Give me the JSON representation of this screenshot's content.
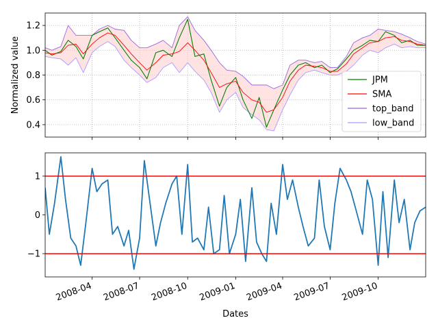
{
  "chart_data": [
    {
      "type": "line",
      "panel": "top",
      "xlabel": "",
      "ylabel": "Normalized value",
      "xlim": [
        "2008-01-02",
        "2009-12-31"
      ],
      "ylim": [
        0.3,
        1.3
      ],
      "yticks": [
        0.4,
        0.6,
        0.8,
        1.0,
        1.2
      ],
      "ytick_labels": [
        "0.4",
        "0.6",
        "0.8",
        "1.0",
        "1.2"
      ],
      "grid": true,
      "grid_style": "dotted",
      "legend_position": "lower-right",
      "band_fill_color": "#ffcccc",
      "series": [
        {
          "name": "JPM",
          "color": "#008000",
          "role": "price",
          "x": [
            "2008-01-02",
            "2008-01-15",
            "2008-02-01",
            "2008-02-15",
            "2008-03-01",
            "2008-03-15",
            "2008-04-01",
            "2008-04-15",
            "2008-05-01",
            "2008-05-15",
            "2008-06-01",
            "2008-06-15",
            "2008-07-01",
            "2008-07-15",
            "2008-08-01",
            "2008-08-15",
            "2008-09-01",
            "2008-09-15",
            "2008-10-01",
            "2008-10-15",
            "2008-11-01",
            "2008-11-15",
            "2008-12-01",
            "2008-12-15",
            "2009-01-01",
            "2009-01-15",
            "2009-02-01",
            "2009-02-15",
            "2009-03-01",
            "2009-03-15",
            "2009-04-01",
            "2009-04-15",
            "2009-05-01",
            "2009-05-15",
            "2009-06-01",
            "2009-06-15",
            "2009-07-01",
            "2009-07-15",
            "2009-08-01",
            "2009-08-15",
            "2009-09-01",
            "2009-09-15",
            "2009-10-01",
            "2009-10-15",
            "2009-11-01",
            "2009-11-15",
            "2009-12-01",
            "2009-12-15",
            "2009-12-31"
          ],
          "values": [
            1.0,
            0.96,
            0.99,
            1.08,
            1.03,
            0.93,
            1.12,
            1.15,
            1.18,
            1.1,
            1.0,
            0.92,
            0.86,
            0.77,
            0.98,
            1.0,
            0.95,
            1.1,
            1.25,
            0.95,
            0.97,
            0.76,
            0.55,
            0.7,
            0.78,
            0.6,
            0.45,
            0.62,
            0.38,
            0.52,
            0.68,
            0.8,
            0.88,
            0.9,
            0.86,
            0.88,
            0.82,
            0.85,
            0.93,
            1.0,
            1.04,
            1.08,
            1.07,
            1.15,
            1.12,
            1.06,
            1.08,
            1.04,
            1.04
          ]
        },
        {
          "name": "SMA",
          "color": "#ff0000",
          "role": "moving-average",
          "x": [
            "2008-01-02",
            "2008-01-15",
            "2008-02-01",
            "2008-02-15",
            "2008-03-01",
            "2008-03-15",
            "2008-04-01",
            "2008-04-15",
            "2008-05-01",
            "2008-05-15",
            "2008-06-01",
            "2008-06-15",
            "2008-07-01",
            "2008-07-15",
            "2008-08-01",
            "2008-08-15",
            "2008-09-01",
            "2008-09-15",
            "2008-10-01",
            "2008-10-15",
            "2008-11-01",
            "2008-11-15",
            "2008-12-01",
            "2008-12-15",
            "2009-01-01",
            "2009-01-15",
            "2009-02-01",
            "2009-02-15",
            "2009-03-01",
            "2009-03-15",
            "2009-04-01",
            "2009-04-15",
            "2009-05-01",
            "2009-05-15",
            "2009-06-01",
            "2009-06-15",
            "2009-07-01",
            "2009-07-15",
            "2009-08-01",
            "2009-08-15",
            "2009-09-01",
            "2009-09-15",
            "2009-10-01",
            "2009-10-15",
            "2009-11-01",
            "2009-11-15",
            "2009-12-01",
            "2009-12-15",
            "2009-12-31"
          ],
          "values": [
            0.98,
            0.97,
            0.98,
            1.04,
            1.05,
            0.97,
            1.05,
            1.1,
            1.14,
            1.12,
            1.04,
            0.97,
            0.9,
            0.84,
            0.9,
            0.96,
            0.97,
            0.99,
            1.06,
            1.0,
            0.92,
            0.82,
            0.7,
            0.73,
            0.75,
            0.66,
            0.6,
            0.58,
            0.5,
            0.52,
            0.62,
            0.75,
            0.84,
            0.88,
            0.87,
            0.86,
            0.83,
            0.83,
            0.89,
            0.97,
            1.02,
            1.06,
            1.07,
            1.1,
            1.11,
            1.08,
            1.07,
            1.05,
            1.04
          ]
        },
        {
          "name": "top_band",
          "color": "#9966dd",
          "role": "upper-band",
          "x": [
            "2008-01-02",
            "2008-01-15",
            "2008-02-01",
            "2008-02-15",
            "2008-03-01",
            "2008-03-15",
            "2008-04-01",
            "2008-04-15",
            "2008-05-01",
            "2008-05-15",
            "2008-06-01",
            "2008-06-15",
            "2008-07-01",
            "2008-07-15",
            "2008-08-01",
            "2008-08-15",
            "2008-09-01",
            "2008-09-15",
            "2008-10-01",
            "2008-10-15",
            "2008-11-01",
            "2008-11-15",
            "2008-12-01",
            "2008-12-15",
            "2009-01-01",
            "2009-01-15",
            "2009-02-01",
            "2009-02-15",
            "2009-03-01",
            "2009-03-15",
            "2009-04-01",
            "2009-04-15",
            "2009-05-01",
            "2009-05-15",
            "2009-06-01",
            "2009-06-15",
            "2009-07-01",
            "2009-07-15",
            "2009-08-01",
            "2009-08-15",
            "2009-09-01",
            "2009-09-15",
            "2009-10-01",
            "2009-10-15",
            "2009-11-01",
            "2009-11-15",
            "2009-12-01",
            "2009-12-15",
            "2009-12-31"
          ],
          "values": [
            1.02,
            1.0,
            1.03,
            1.2,
            1.12,
            1.12,
            1.12,
            1.17,
            1.2,
            1.17,
            1.16,
            1.08,
            1.02,
            1.02,
            1.05,
            1.08,
            1.02,
            1.2,
            1.27,
            1.16,
            1.08,
            1.0,
            0.9,
            0.84,
            0.83,
            0.79,
            0.72,
            0.72,
            0.72,
            0.69,
            0.72,
            0.88,
            0.92,
            0.92,
            0.9,
            0.91,
            0.86,
            0.86,
            0.95,
            1.06,
            1.1,
            1.12,
            1.17,
            1.16,
            1.15,
            1.13,
            1.1,
            1.07,
            1.05
          ]
        },
        {
          "name": "low_band",
          "color": "#aa99ff",
          "role": "lower-band",
          "x": [
            "2008-01-02",
            "2008-01-15",
            "2008-02-01",
            "2008-02-15",
            "2008-03-01",
            "2008-03-15",
            "2008-04-01",
            "2008-04-15",
            "2008-05-01",
            "2008-05-15",
            "2008-06-01",
            "2008-06-15",
            "2008-07-01",
            "2008-07-15",
            "2008-08-01",
            "2008-08-15",
            "2008-09-01",
            "2008-09-15",
            "2008-10-01",
            "2008-10-15",
            "2008-11-01",
            "2008-11-15",
            "2008-12-01",
            "2008-12-15",
            "2009-01-01",
            "2009-01-15",
            "2009-02-01",
            "2009-02-15",
            "2009-03-01",
            "2009-03-15",
            "2009-04-01",
            "2009-04-15",
            "2009-05-01",
            "2009-05-15",
            "2009-06-01",
            "2009-06-15",
            "2009-07-01",
            "2009-07-15",
            "2009-08-01",
            "2009-08-15",
            "2009-09-01",
            "2009-09-15",
            "2009-10-01",
            "2009-10-15",
            "2009-11-01",
            "2009-11-15",
            "2009-12-01",
            "2009-12-15",
            "2009-12-31"
          ],
          "values": [
            0.95,
            0.94,
            0.93,
            0.88,
            0.94,
            0.82,
            0.98,
            1.03,
            1.07,
            1.03,
            0.92,
            0.86,
            0.8,
            0.74,
            0.78,
            0.86,
            0.9,
            0.82,
            0.9,
            0.83,
            0.76,
            0.66,
            0.5,
            0.6,
            0.66,
            0.54,
            0.48,
            0.44,
            0.36,
            0.35,
            0.52,
            0.64,
            0.76,
            0.82,
            0.84,
            0.82,
            0.8,
            0.8,
            0.83,
            0.88,
            0.96,
            1.0,
            0.98,
            1.02,
            1.05,
            1.02,
            1.03,
            1.02,
            1.02
          ]
        }
      ]
    },
    {
      "type": "line",
      "panel": "bottom",
      "xlabel": "Dates",
      "ylabel": "",
      "xlim": [
        "2008-01-02",
        "2009-12-31"
      ],
      "ylim": [
        -1.6,
        1.6
      ],
      "yticks": [
        -1,
        0,
        1
      ],
      "ytick_labels": [
        "−1",
        "0",
        "1"
      ],
      "xticks": [
        "2008-04-01",
        "2008-07-01",
        "2008-10-01",
        "2009-01-01",
        "2009-04-01",
        "2009-07-01",
        "2009-10-01"
      ],
      "xtick_labels": [
        "2008-04",
        "2008-07",
        "2008-10",
        "2009-01",
        "2009-04",
        "2009-07",
        "2009-10"
      ],
      "grid": false,
      "thresholds": [
        {
          "value": 1,
          "color": "#ff0000"
        },
        {
          "value": -1,
          "color": "#ff0000"
        }
      ],
      "series": [
        {
          "color": "#1f77b4",
          "x": [
            "2008-01-02",
            "2008-01-10",
            "2008-01-20",
            "2008-02-01",
            "2008-02-10",
            "2008-02-20",
            "2008-03-01",
            "2008-03-10",
            "2008-03-20",
            "2008-04-01",
            "2008-04-10",
            "2008-04-20",
            "2008-05-01",
            "2008-05-10",
            "2008-05-20",
            "2008-06-01",
            "2008-06-10",
            "2008-06-20",
            "2008-07-01",
            "2008-07-10",
            "2008-07-20",
            "2008-08-01",
            "2008-08-10",
            "2008-08-20",
            "2008-09-01",
            "2008-09-10",
            "2008-09-20",
            "2008-10-01",
            "2008-10-10",
            "2008-10-20",
            "2008-11-01",
            "2008-11-10",
            "2008-11-20",
            "2008-12-01",
            "2008-12-10",
            "2008-12-20",
            "2009-01-01",
            "2009-01-10",
            "2009-01-20",
            "2009-02-01",
            "2009-02-10",
            "2009-02-20",
            "2009-03-01",
            "2009-03-10",
            "2009-03-20",
            "2009-04-01",
            "2009-04-10",
            "2009-04-20",
            "2009-05-01",
            "2009-05-10",
            "2009-05-20",
            "2009-06-01",
            "2009-06-10",
            "2009-06-20",
            "2009-07-01",
            "2009-07-10",
            "2009-07-20",
            "2009-08-01",
            "2009-08-10",
            "2009-08-20",
            "2009-09-01",
            "2009-09-10",
            "2009-09-20",
            "2009-10-01",
            "2009-10-10",
            "2009-10-20",
            "2009-11-01",
            "2009-11-10",
            "2009-11-20",
            "2009-12-01",
            "2009-12-10",
            "2009-12-20",
            "2009-12-31"
          ],
          "values": [
            0.7,
            -0.5,
            0.3,
            1.5,
            0.4,
            -0.6,
            -0.8,
            -1.3,
            -0.2,
            1.2,
            0.6,
            0.8,
            0.9,
            -0.5,
            -0.3,
            -0.8,
            -0.4,
            -1.4,
            -0.6,
            1.4,
            0.4,
            -0.8,
            -0.2,
            0.3,
            0.8,
            1.0,
            -0.5,
            1.3,
            -0.7,
            -0.6,
            -0.9,
            0.2,
            -1.0,
            -0.9,
            0.5,
            -1.0,
            -0.5,
            0.4,
            -1.2,
            0.7,
            -0.7,
            -1.0,
            -1.2,
            0.3,
            -0.5,
            1.3,
            0.4,
            0.9,
            0.2,
            -0.3,
            -0.8,
            -0.6,
            0.9,
            -0.3,
            -0.9,
            0.3,
            1.2,
            0.9,
            0.6,
            0.1,
            -0.5,
            0.9,
            0.4,
            -1.3,
            0.6,
            -1.1,
            0.9,
            -0.2,
            0.4,
            -0.9,
            -0.2,
            0.1,
            0.2
          ]
        }
      ]
    }
  ]
}
